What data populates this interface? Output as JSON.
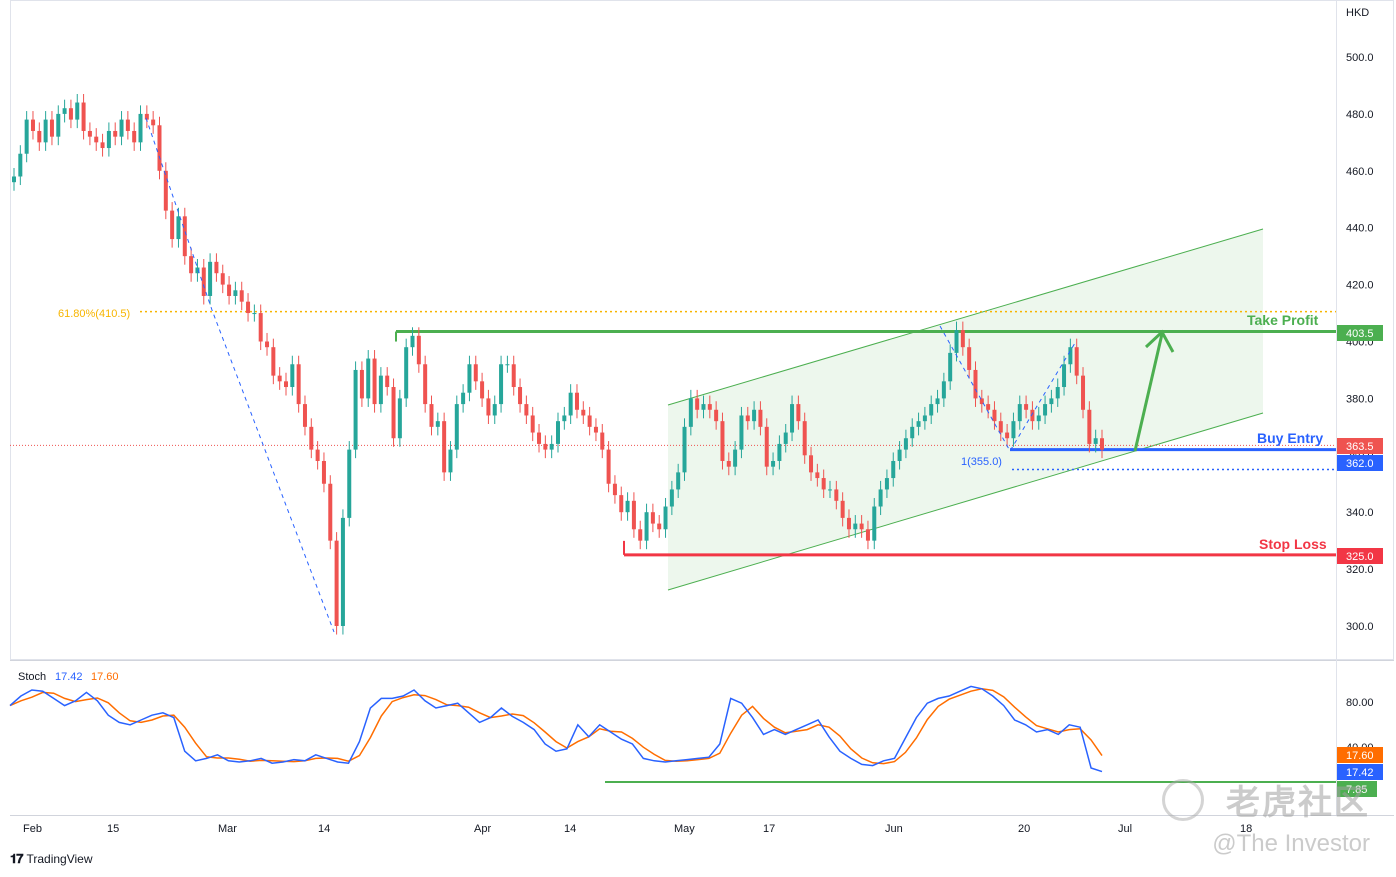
{
  "currency": "HKD",
  "price_axis": {
    "ticks": [
      "300.0",
      "320.0",
      "340.0",
      "360.0",
      "380.0",
      "400.0",
      "420.0",
      "440.0",
      "460.0",
      "480.0",
      "500.0"
    ],
    "tick_values": [
      300,
      320,
      340,
      360,
      380,
      400,
      420,
      440,
      460,
      480,
      500
    ]
  },
  "time_axis": {
    "labels": [
      "Feb",
      "15",
      "Mar",
      "14",
      "Apr",
      "14",
      "May",
      "17",
      "Jun",
      "20",
      "Jul",
      "18"
    ]
  },
  "labels": {
    "take_profit": "Take Profit",
    "buy_entry": "Buy Entry",
    "stop_loss": "Stop Loss",
    "fib": "61.80%(410.5)",
    "swing": "1(355.0)"
  },
  "badges": {
    "take_profit": "403.5",
    "current": "363.5",
    "buy_entry": "362.0",
    "stop_loss": "325.0",
    "stoch_d": "17.60",
    "stoch_k": "17.42",
    "stoch_low": "7.85"
  },
  "stoch": {
    "title": "Stoch",
    "k_value": "17.42",
    "d_value": "17.60",
    "ticks": [
      "80.00",
      "40.00"
    ]
  },
  "colors": {
    "up": "#26a69a",
    "down": "#ef5350",
    "take_profit": "#4caf50",
    "stop_loss": "#f23645",
    "buy_entry": "#2962ff",
    "fib": "#f7b500",
    "stoch_k": "#2962ff",
    "stoch_d": "#ff6d00"
  },
  "branding": {
    "tradingview": "TradingView",
    "watermark_cn": "老虎社区",
    "watermark_user": "@The Investor"
  },
  "chart_data": {
    "type": "candlestick",
    "ylim": [
      290,
      510
    ],
    "levels": {
      "take_profit": 403.5,
      "current": 363.5,
      "buy_entry": 362.0,
      "stop_loss": 325.0,
      "fib_618": 410.5,
      "swing_low": 355.0
    },
    "closes": [
      458,
      466,
      478,
      474,
      470,
      478,
      472,
      480,
      482,
      478,
      484,
      474,
      472,
      470,
      468,
      474,
      472,
      478,
      474,
      470,
      480,
      478,
      476,
      460,
      446,
      436,
      444,
      430,
      424,
      426,
      416,
      428,
      424,
      420,
      416,
      418,
      414,
      410,
      410,
      400,
      398,
      388,
      386,
      384,
      392,
      378,
      370,
      362,
      358,
      350,
      330,
      300,
      338,
      362,
      390,
      380,
      394,
      378,
      388,
      384,
      366,
      380,
      398,
      402,
      392,
      378,
      370,
      372,
      354,
      362,
      378,
      382,
      392,
      386,
      380,
      374,
      378,
      392,
      392,
      384,
      378,
      374,
      368,
      364,
      362,
      364,
      372,
      374,
      382,
      376,
      374,
      370,
      368,
      362,
      350,
      346,
      340,
      344,
      334,
      330,
      340,
      336,
      334,
      342,
      348,
      354,
      370,
      380,
      376,
      378,
      376,
      372,
      358,
      356,
      362,
      374,
      372,
      376,
      370,
      356,
      358,
      364,
      368,
      378,
      372,
      360,
      354,
      352,
      348,
      348,
      344,
      338,
      334,
      336,
      334,
      330,
      342,
      348,
      352,
      358,
      362,
      366,
      370,
      372,
      374,
      378,
      380,
      386,
      396,
      404,
      398,
      390,
      380,
      378,
      376,
      372,
      368,
      366,
      372,
      378,
      376,
      372,
      374,
      378,
      380,
      384,
      392,
      398,
      388,
      376,
      364,
      366,
      362
    ],
    "stoch_k": [
      72,
      80,
      85,
      84,
      78,
      72,
      76,
      83,
      76,
      64,
      58,
      56,
      60,
      64,
      66,
      62,
      34,
      26,
      28,
      31,
      26,
      25,
      26,
      28,
      24,
      25,
      27,
      26,
      31,
      28,
      25,
      24,
      42,
      70,
      78,
      78,
      80,
      85,
      76,
      70,
      72,
      74,
      66,
      58,
      62,
      70,
      63,
      58,
      52,
      40,
      34,
      36,
      56,
      46,
      56,
      50,
      44,
      40,
      28,
      26,
      25,
      26,
      27,
      28,
      29,
      40,
      78,
      74,
      62,
      48,
      52,
      48,
      52,
      56,
      60,
      46,
      34,
      28,
      23,
      22,
      26,
      28,
      45,
      62,
      74,
      78,
      80,
      84,
      88,
      86,
      80,
      72,
      60,
      56,
      50,
      52,
      48,
      56,
      54,
      20,
      17
    ]
  }
}
